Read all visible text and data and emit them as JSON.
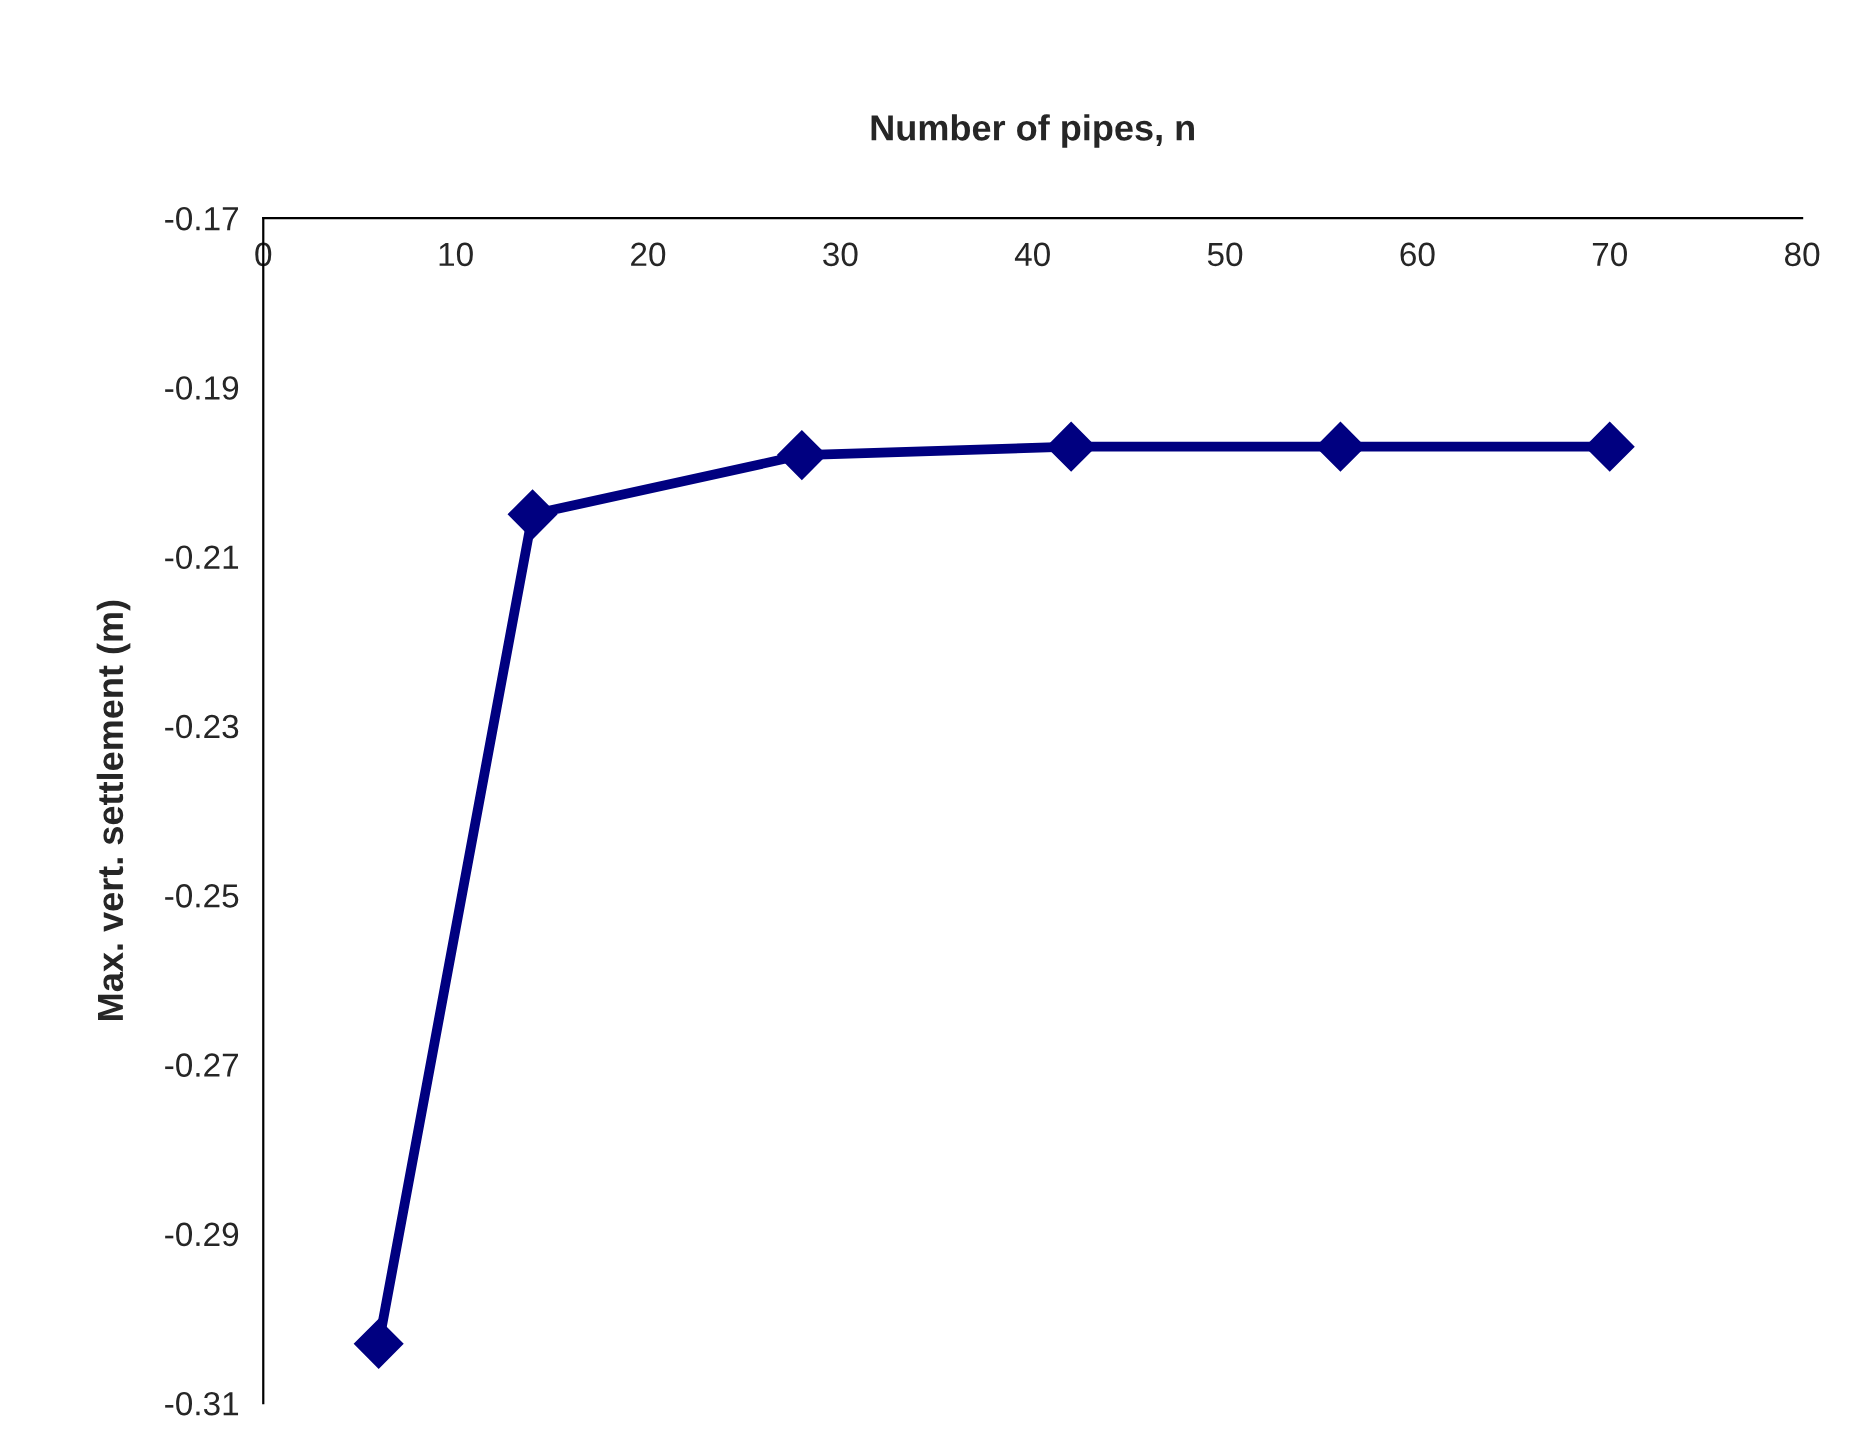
{
  "chart_data": {
    "type": "line",
    "xlabel": "Number of pipes, n",
    "ylabel": "Max. vert. settlement (m)",
    "x": [
      6,
      14,
      28,
      42,
      56,
      70
    ],
    "series": [
      {
        "color": "#000080",
        "values": [
          -0.303,
          -0.205,
          -0.198,
          -0.197,
          -0.197,
          -0.197
        ]
      }
    ],
    "xlim": [
      0,
      80
    ],
    "xticks": [
      0,
      10,
      20,
      30,
      40,
      50,
      60,
      70,
      80
    ],
    "ylim": [
      -0.31,
      -0.17
    ],
    "yticks": [
      -0.31,
      -0.29,
      -0.27,
      -0.25,
      -0.23,
      -0.21,
      -0.19,
      -0.17
    ],
    "marker": "diamond",
    "line_style": "solid",
    "grid": false,
    "legend": false
  }
}
